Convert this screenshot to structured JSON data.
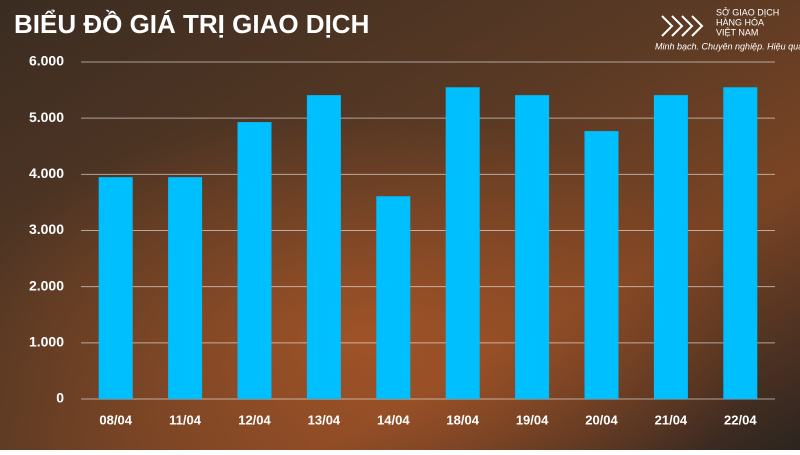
{
  "header": {
    "org_name_1": "SỞ GIAO DỊCH",
    "org_name_2": "HÀNG HÓA",
    "org_name_3": "VIỆT NAM",
    "tagline": "Minh bạch. Chuyên nghiệp. Hiệu quả"
  },
  "chart_data": {
    "type": "bar",
    "title": "BIỂU ĐỒ GIÁ TRỊ GIAO DỊCH",
    "categories": [
      "08/04",
      "11/04",
      "12/04",
      "13/04",
      "14/04",
      "18/04",
      "19/04",
      "20/04",
      "21/04",
      "22/04"
    ],
    "values": [
      3950,
      3950,
      4930,
      5410,
      3610,
      5550,
      5410,
      4770,
      5410,
      5550
    ],
    "color": "#00bfff",
    "ylim": [
      0,
      6000
    ],
    "yticks": [
      0,
      {
        "value": 1000,
        "label": "1.000"
      },
      {
        "value": 2000,
        "label": "2.000"
      },
      {
        "value": 3000,
        "label": "3.000"
      },
      {
        "value": 4000,
        "label": "4.000"
      },
      {
        "value": 5000,
        "label": "5.000"
      },
      {
        "value": 6000,
        "label": "6.000"
      }
    ],
    "grid": true
  }
}
